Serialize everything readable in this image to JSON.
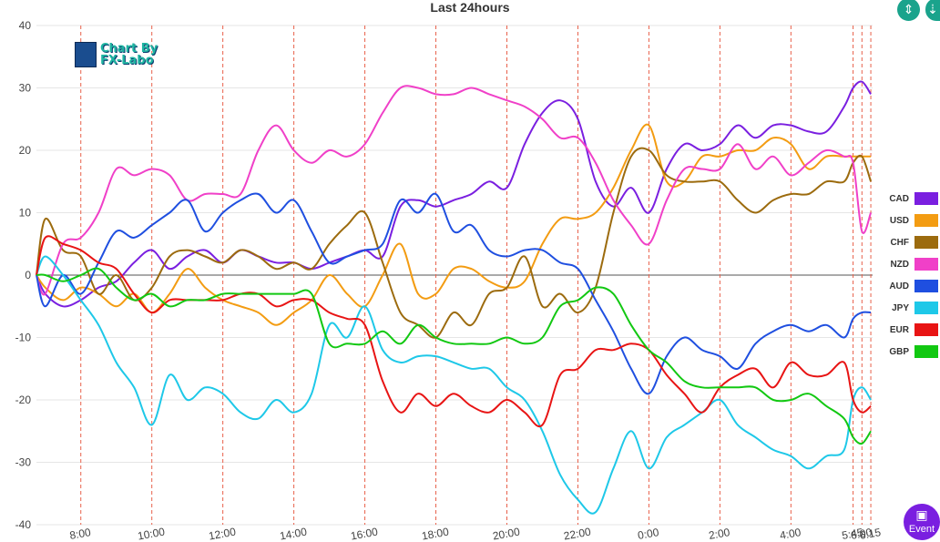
{
  "window": {
    "title": "Last 24hours"
  },
  "logo": {
    "line1": "Chart By",
    "line2": "FX-Labo"
  },
  "buttons": {
    "event_label": "Event"
  },
  "chart_data": {
    "type": "line",
    "title": "Last 24hours",
    "xlabel": "",
    "ylabel": "",
    "ylim": [
      -40,
      40
    ],
    "yticks": [
      40,
      30,
      20,
      10,
      0,
      -10,
      -20,
      -30,
      -40
    ],
    "grid": true,
    "legend_position": "right",
    "x_tick_labels": [
      "8:00",
      "10:00",
      "12:00",
      "14:00",
      "16:00",
      "18:00",
      "20:00",
      "22:00",
      "0:00",
      "2:00",
      "4:00",
      "5:45",
      "6:00",
      "6:15"
    ],
    "vertical_markers": [
      "8:00",
      "10:00",
      "12:00",
      "14:00",
      "16:00",
      "18:00",
      "20:00",
      "22:00",
      "0:00",
      "2:00",
      "4:00",
      "5:45",
      "6:00",
      "6:15"
    ],
    "x_hours": [
      6.75,
      7.0,
      7.5,
      8.0,
      8.5,
      9.0,
      9.5,
      10.0,
      10.5,
      11.0,
      11.5,
      12.0,
      12.5,
      13.0,
      13.5,
      14.0,
      14.5,
      15.0,
      15.5,
      16.0,
      16.5,
      17.0,
      17.5,
      18.0,
      18.5,
      19.0,
      19.5,
      20.0,
      20.5,
      21.0,
      21.5,
      22.0,
      22.5,
      23.0,
      23.5,
      24.0,
      24.5,
      25.0,
      25.5,
      26.0,
      26.5,
      27.0,
      27.5,
      28.0,
      28.5,
      29.0,
      29.5,
      29.75,
      30.0,
      30.25
    ],
    "series": [
      {
        "name": "CAD",
        "color": "#7a1fe0",
        "values": [
          0,
          -3,
          -5,
          -4,
          -2,
          -1,
          2,
          4,
          1,
          3,
          4,
          2,
          4,
          3,
          2,
          2,
          1,
          2,
          3,
          4,
          3,
          11,
          12,
          11,
          12,
          13,
          15,
          14,
          21,
          26,
          28,
          25,
          15,
          11,
          14,
          10,
          17,
          21,
          20,
          21,
          24,
          22,
          24,
          24,
          23,
          23,
          27,
          30,
          31,
          29
        ]
      },
      {
        "name": "USD",
        "color": "#f39c12",
        "values": [
          0,
          -2,
          -4,
          -2,
          -3,
          -5,
          -3,
          -6,
          -3,
          1,
          -2,
          -4,
          -5,
          -6,
          -8,
          -6,
          -4,
          0,
          -3,
          -5,
          0,
          5,
          -3,
          -3,
          1,
          1,
          -1,
          -2,
          -1,
          5,
          9,
          9,
          10,
          14,
          20,
          24,
          15,
          15,
          19,
          19,
          20,
          20,
          22,
          21,
          17,
          19,
          19,
          19,
          19,
          19
        ]
      },
      {
        "name": "CHF",
        "color": "#9c6b0e",
        "values": [
          0,
          9,
          4,
          3,
          -3,
          0,
          -4,
          -2,
          3,
          4,
          3,
          2,
          4,
          3,
          1,
          2,
          1,
          5,
          8,
          10,
          2,
          -6,
          -8,
          -10,
          -6,
          -8,
          -3,
          -2,
          3,
          -5,
          -3,
          -6,
          -2,
          10,
          19,
          20,
          16,
          15,
          15,
          15,
          12,
          10,
          12,
          13,
          13,
          15,
          15,
          18,
          19,
          15
        ]
      },
      {
        "name": "NZD",
        "color": "#f040c8",
        "values": [
          0,
          -3,
          5,
          6,
          10,
          17,
          16,
          17,
          16,
          12,
          13,
          13,
          13,
          20,
          24,
          20,
          18,
          20,
          19,
          21,
          26,
          30,
          30,
          29,
          29,
          30,
          29,
          28,
          27,
          25,
          22,
          22,
          18,
          12,
          8,
          5,
          12,
          17,
          17,
          17,
          21,
          17,
          19,
          16,
          18,
          20,
          19,
          18,
          7,
          10
        ]
      },
      {
        "name": "AUD",
        "color": "#1f4fe0",
        "values": [
          0,
          -5,
          0,
          -3,
          2,
          7,
          6,
          8,
          10,
          12,
          7,
          10,
          12,
          13,
          10,
          12,
          7,
          2,
          3,
          4,
          5,
          12,
          10,
          13,
          7,
          8,
          4,
          3,
          4,
          4,
          2,
          1,
          -4,
          -9,
          -15,
          -19,
          -13,
          -10,
          -12,
          -13,
          -15,
          -11,
          -9,
          -8,
          -9,
          -8,
          -10,
          -7,
          -6,
          -6
        ]
      },
      {
        "name": "JPY",
        "color": "#1ec8e8",
        "values": [
          0,
          3,
          0,
          -4,
          -8,
          -14,
          -18,
          -24,
          -16,
          -20,
          -18,
          -19,
          -22,
          -23,
          -20,
          -22,
          -19,
          -8,
          -10,
          -5,
          -12,
          -14,
          -13,
          -13,
          -14,
          -15,
          -15,
          -18,
          -20,
          -25,
          -32,
          -36,
          -38,
          -31,
          -25,
          -31,
          -26,
          -24,
          -22,
          -20,
          -24,
          -26,
          -28,
          -29,
          -31,
          -29,
          -28,
          -20,
          -18,
          -20
        ]
      },
      {
        "name": "EUR",
        "color": "#e81414",
        "values": [
          0,
          6,
          5,
          4,
          2,
          1,
          -3,
          -6,
          -4,
          -4,
          -4,
          -4,
          -3,
          -3,
          -5,
          -4,
          -4,
          -6,
          -7,
          -8,
          -17,
          -22,
          -19,
          -21,
          -19,
          -21,
          -22,
          -20,
          -22,
          -24,
          -16,
          -15,
          -12,
          -12,
          -11,
          -12,
          -16,
          -19,
          -22,
          -18,
          -16,
          -15,
          -18,
          -14,
          -16,
          -16,
          -14,
          -20,
          -22,
          -21
        ]
      },
      {
        "name": "GBP",
        "color": "#12c812",
        "values": [
          0,
          0,
          -1,
          0,
          1,
          -2,
          -4,
          -3,
          -5,
          -4,
          -4,
          -3,
          -3,
          -3,
          -3,
          -3,
          -3,
          -11,
          -11,
          -11,
          -9,
          -11,
          -8,
          -10,
          -11,
          -11,
          -11,
          -10,
          -11,
          -10,
          -5,
          -4,
          -2,
          -3,
          -8,
          -12,
          -14,
          -17,
          -18,
          -18,
          -18,
          -18,
          -20,
          -20,
          -19,
          -21,
          -23,
          -26,
          -27,
          -25
        ]
      }
    ]
  }
}
